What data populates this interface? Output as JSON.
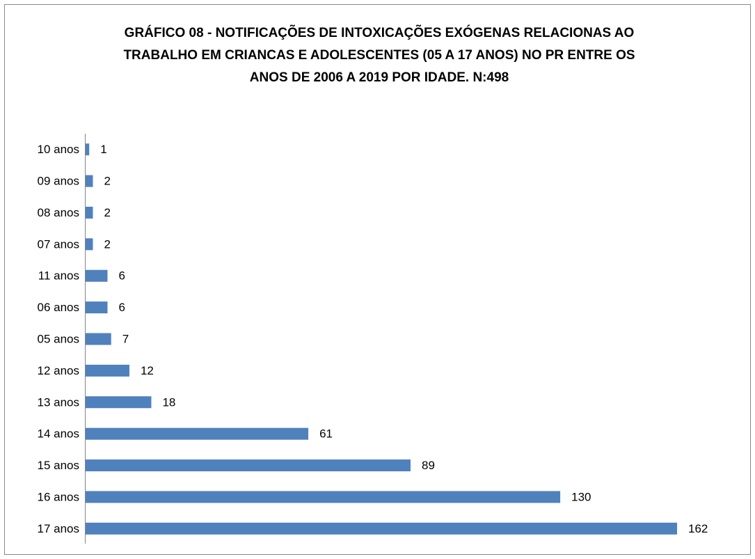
{
  "chart_data": {
    "type": "hbar",
    "title": [
      "GRÁFICO 08 - NOTIFICAÇÕES DE INTOXICAÇÕES EXÓGENAS RELACIONAS AO",
      "TRABALHO EM CRIANCAS E ADOLESCENTES (05 A 17 ANOS) NO PR ENTRE OS",
      "ANOS DE 2006 A 2019 POR IDADE. N:498"
    ],
    "categories": [
      "10 anos",
      "09 anos",
      "08 anos",
      "07 anos",
      "11 anos",
      "06 anos",
      "05 anos",
      "12 anos",
      "13 anos",
      "14 anos",
      "15 anos",
      "16 anos",
      "17 anos"
    ],
    "values": [
      1,
      2,
      2,
      2,
      6,
      6,
      7,
      12,
      18,
      61,
      89,
      130,
      162
    ],
    "color": "#4f81bd",
    "xlim": [
      0,
      170
    ]
  }
}
